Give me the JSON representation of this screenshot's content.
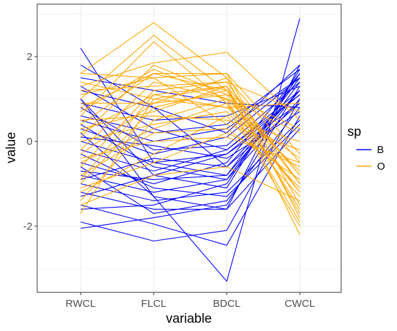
{
  "chart_data": {
    "type": "line",
    "subtype": "parallel-coordinates",
    "xlabel": "variable",
    "ylabel": "value",
    "categories": [
      "RWCL",
      "FLCL",
      "BDCL",
      "CWCL"
    ],
    "ylim": [
      -3.5,
      3.2
    ],
    "yticks": [
      -2,
      0,
      2
    ],
    "ytick_labels": [
      "-2",
      "0",
      "2"
    ],
    "grid": true,
    "legend": {
      "title": "sp",
      "position": "right",
      "entries": [
        {
          "label": "B",
          "color": "#0000ff"
        },
        {
          "label": "O",
          "color": "#ffa500"
        }
      ]
    },
    "series": [
      {
        "name": "B",
        "color": "#0000ff",
        "lines": [
          [
            2.2,
            -0.5,
            -0.8,
            1.5
          ],
          [
            1.8,
            0.8,
            -0.6,
            1.2
          ],
          [
            1.0,
            -1.3,
            -3.3,
            2.9
          ],
          [
            -2.05,
            -1.8,
            -1.5,
            1.3
          ],
          [
            -1.9,
            -2.35,
            -2.1,
            1.0
          ],
          [
            -1.5,
            -1.95,
            -2.45,
            0.6
          ],
          [
            -1.2,
            -1.6,
            -1.6,
            1.8
          ],
          [
            -0.8,
            -1.2,
            -0.9,
            1.4
          ],
          [
            -0.5,
            -1.0,
            -0.5,
            1.6
          ],
          [
            -0.2,
            -0.7,
            -0.2,
            1.1
          ],
          [
            0.0,
            -0.5,
            -0.3,
            0.9
          ],
          [
            0.3,
            -0.3,
            0.1,
            1.5
          ],
          [
            0.6,
            0.2,
            0.4,
            1.7
          ],
          [
            0.9,
            0.5,
            0.6,
            1.3
          ],
          [
            1.2,
            0.8,
            0.2,
            1.8
          ],
          [
            1.5,
            1.2,
            0.9,
            0.8
          ],
          [
            -1.0,
            -1.4,
            -1.2,
            0.5
          ],
          [
            -0.7,
            -0.9,
            -0.8,
            1.2
          ],
          [
            0.1,
            -0.1,
            -0.4,
            0.7
          ],
          [
            0.4,
            -0.6,
            -0.9,
            1.0
          ],
          [
            -0.3,
            -1.1,
            -1.3,
            0.4
          ],
          [
            0.8,
            -0.2,
            -0.1,
            1.4
          ],
          [
            -1.6,
            -1.5,
            -1.0,
            1.6
          ],
          [
            1.3,
            0.3,
            -0.2,
            1.2
          ],
          [
            -0.9,
            -0.4,
            -0.6,
            0.9
          ],
          [
            0.2,
            -1.3,
            -1.6,
            0.3
          ],
          [
            1.0,
            -0.8,
            -1.1,
            1.7
          ],
          [
            -1.3,
            -0.8,
            -0.3,
            1.1
          ],
          [
            0.5,
            0.0,
            0.3,
            1.5
          ],
          [
            -0.6,
            -1.7,
            -1.4,
            0.8
          ]
        ]
      },
      {
        "name": "O",
        "color": "#ffa500",
        "lines": [
          [
            1.6,
            2.8,
            1.5,
            -0.5
          ],
          [
            1.0,
            2.5,
            1.2,
            -0.8
          ],
          [
            0.6,
            2.35,
            0.9,
            -1.2
          ],
          [
            1.3,
            1.85,
            2.1,
            0.5
          ],
          [
            0.8,
            1.6,
            1.6,
            -1.5
          ],
          [
            1.6,
            1.5,
            1.6,
            -0.3
          ],
          [
            -1.7,
            1.0,
            1.3,
            -2.2
          ],
          [
            -1.4,
            0.5,
            1.0,
            -1.9
          ],
          [
            -1.0,
            0.8,
            1.2,
            -1.6
          ],
          [
            -0.6,
            1.2,
            1.4,
            -1.0
          ],
          [
            -0.2,
            1.4,
            1.0,
            -0.7
          ],
          [
            0.2,
            1.1,
            0.8,
            -0.4
          ],
          [
            0.5,
            0.6,
            0.5,
            0.0
          ],
          [
            0.9,
            0.9,
            1.1,
            0.3
          ],
          [
            1.2,
            1.3,
            1.4,
            0.7
          ],
          [
            -1.2,
            -0.3,
            0.6,
            -1.3
          ],
          [
            -0.8,
            0.2,
            0.3,
            -0.9
          ],
          [
            -0.4,
            0.0,
            0.1,
            -0.5
          ],
          [
            0.0,
            0.4,
            0.7,
            -1.1
          ],
          [
            0.3,
            0.7,
            1.3,
            -1.7
          ],
          [
            0.7,
            1.7,
            1.0,
            0.2
          ],
          [
            1.1,
            1.5,
            0.4,
            -0.2
          ],
          [
            -1.5,
            -0.8,
            -0.6,
            -1.4
          ],
          [
            -1.1,
            -0.5,
            0.2,
            -0.6
          ],
          [
            -0.3,
            0.9,
            1.5,
            -1.8
          ],
          [
            0.4,
            1.6,
            1.2,
            -1.0
          ],
          [
            1.4,
            1.0,
            0.8,
            0.9
          ],
          [
            -0.9,
            1.1,
            1.3,
            -0.8
          ],
          [
            0.1,
            1.8,
            1.1,
            -1.2
          ],
          [
            -0.5,
            0.3,
            0.9,
            -2.0
          ]
        ]
      }
    ]
  }
}
